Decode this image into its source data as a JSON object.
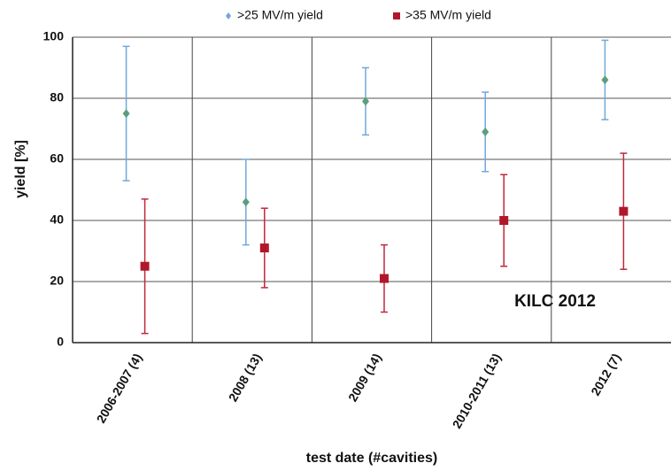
{
  "chart_data": {
    "type": "errorbar",
    "legend": "top",
    "xlabel": "test date (#cavities)",
    "ylabel": "yield [%]",
    "annotation": "KILC 2012",
    "categories": [
      "2006-2007 (4)",
      "2008 (13)",
      "2009 (14)",
      "2010-2011 (13)",
      "2012 (7)"
    ],
    "series": [
      {
        "name": ">25 MV/m yield",
        "color": "#5b9e7e",
        "bar_color": "#6fa8dc",
        "marker": "diamond",
        "values": [
          75,
          46,
          79,
          69,
          86
        ],
        "lows": [
          53,
          32,
          68,
          56,
          73
        ],
        "highs": [
          97,
          60,
          90,
          82,
          99
        ]
      },
      {
        "name": ">35 MV/m yield",
        "color": "#b0182a",
        "bar_color": "#c0283a",
        "marker": "square",
        "values": [
          25,
          31,
          21,
          40,
          43
        ],
        "lows": [
          3,
          18,
          10,
          25,
          24
        ],
        "highs": [
          47,
          44,
          32,
          55,
          62
        ]
      }
    ],
    "ylim": [
      0,
      100
    ],
    "yticks": [
      0,
      20,
      40,
      60,
      80,
      100
    ],
    "grid": true
  }
}
